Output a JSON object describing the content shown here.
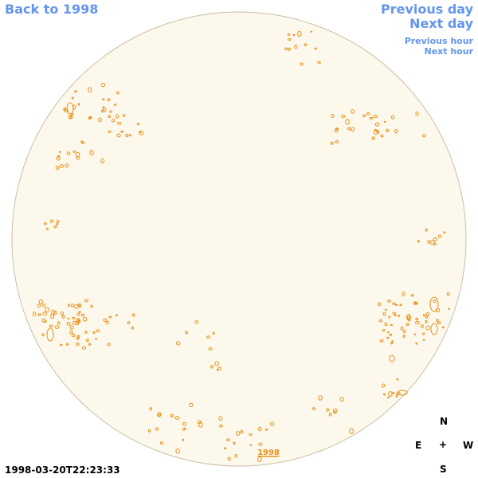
{
  "nav": {
    "back_label": "Back to 1998",
    "previous_day_label": "Previous day",
    "next_day_label": "Next day",
    "previous_hour_label": "Previous hour",
    "next_hour_label": "Next hour"
  },
  "disk": {
    "year_label": "1998",
    "fill_color": "#fdf8ec",
    "border_color": "#c8bfa8",
    "contour_color": "#e8901a"
  },
  "timestamp": "1998-03-20T22:23:33",
  "compass": {
    "north": "N",
    "east": "E",
    "center": "+",
    "west": "W",
    "south": "S"
  }
}
